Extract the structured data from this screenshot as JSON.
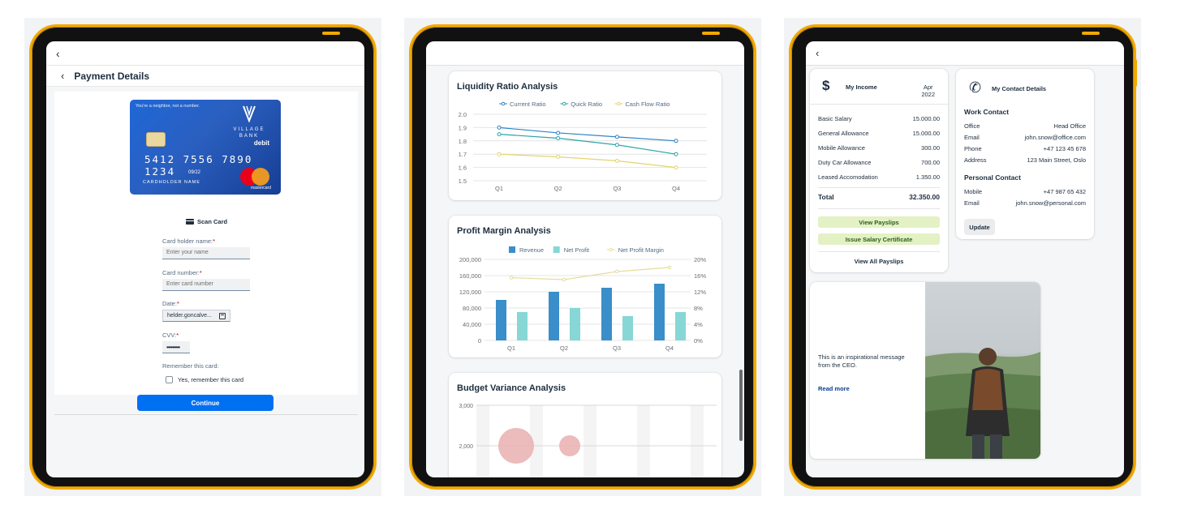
{
  "payment": {
    "title": "Payment Details",
    "card": {
      "slogan": "You're a neighbor, not a number.",
      "bank": "VILLAGE BANK",
      "type": "debit",
      "number": "5412 7556 7890 1234",
      "expiry": "09/22",
      "holder": "CARDHOLDER NAME",
      "network": "mastercard"
    },
    "scan_label": "Scan Card",
    "fields": {
      "holder_label": "Card holder name:",
      "holder_placeholder": "Enter your name",
      "number_label": "Card number:",
      "number_placeholder": "Enter card number",
      "date_label": "Date:",
      "date_value": "helder.goncalve...",
      "cvv_label": "CVV:",
      "cvv_value": "•••••••••",
      "required_mark": "*"
    },
    "remember_label": "Remember this card:",
    "remember_option": "Yes, remember this card",
    "continue_label": "Continue",
    "colors": {
      "primary": "#0070f2"
    }
  },
  "analytics": {
    "liquidity": {
      "title": "Liquidity Ratio Analysis",
      "chart_data": {
        "type": "line",
        "categories": [
          "Q1",
          "Q2",
          "Q3",
          "Q4"
        ],
        "series": [
          {
            "name": "Current Ratio",
            "values": [
              1.9,
              1.86,
              1.83,
              1.8
            ],
            "color": "#2e83c8"
          },
          {
            "name": "Quick Ratio",
            "values": [
              1.85,
              1.82,
              1.77,
              1.7
            ],
            "color": "#2ca4a8"
          },
          {
            "name": "Cash Flow Ratio",
            "values": [
              1.7,
              1.68,
              1.65,
              1.6
            ],
            "color": "#e3d46e"
          }
        ],
        "ylim": [
          1.5,
          2.0
        ],
        "yticks": [
          "2.0",
          "1.9",
          "1.8",
          "1.7",
          "1.6",
          "1.5"
        ]
      }
    },
    "profit": {
      "title": "Profit Margin Analysis",
      "chart_data": {
        "type": "bar",
        "categories": [
          "Q1",
          "Q2",
          "Q3",
          "Q4"
        ],
        "series": [
          {
            "name": "Revenue",
            "values": [
              100000,
              120000,
              130000,
              140000
            ],
            "color": "#3a8ec9"
          },
          {
            "name": "Net Profit",
            "values": [
              70000,
              80000,
              60000,
              70000
            ],
            "color": "#86d7d6"
          },
          {
            "name": "Net Profit Margin",
            "values": [
              15.5,
              15.0,
              17.0,
              18.0
            ],
            "color": "#e6dc9c",
            "axis": "right"
          }
        ],
        "ylim": [
          0,
          200000
        ],
        "y2lim": [
          0,
          20
        ],
        "yticks": [
          "200,000",
          "160,000",
          "120,000",
          "80,000",
          "40,000",
          "0"
        ],
        "y2ticks": [
          "20%",
          "16%",
          "12%",
          "8%",
          "4%",
          "0%"
        ]
      }
    },
    "budget": {
      "title": "Budget Variance Analysis",
      "chart_data": {
        "type": "scatter",
        "yticks": [
          "3,000",
          "2,000"
        ],
        "points": [
          {
            "x": 1,
            "y": 2000,
            "size": 22,
            "color": "#eab4b4"
          },
          {
            "x": 3,
            "y": 2000,
            "size": 13,
            "color": "#eab4b4"
          }
        ]
      }
    }
  },
  "portal": {
    "income": {
      "title": "My Income",
      "month": "Apr",
      "year": "2022",
      "rows": [
        {
          "label": "Basic Salary",
          "value": "15.000.00"
        },
        {
          "label": "General Allowance",
          "value": "15.000.00"
        },
        {
          "label": "Mobile Allowance",
          "value": "300.00"
        },
        {
          "label": "Duty Car Allowance",
          "value": "700.00"
        },
        {
          "label": "Leased Accomodation",
          "value": "1.350.00"
        }
      ],
      "total_label": "Total",
      "total_value": "32.350.00",
      "btn_payslips": "View Payslips",
      "btn_certificate": "Issue Salary Certificate",
      "link_all": "View All Payslips"
    },
    "contact": {
      "title": "My Contact Details",
      "work_title": "Work Contact",
      "work": [
        {
          "label": "Office",
          "value": "Head Office"
        },
        {
          "label": "Email",
          "value": "john.snow@office.com"
        },
        {
          "label": "Phone",
          "value": "+47 123 45 678"
        },
        {
          "label": "Address",
          "value": "123 Main Street, Oslo"
        }
      ],
      "personal_title": "Personal Contact",
      "personal": [
        {
          "label": "Mobile",
          "value": "+47 987 65 432"
        },
        {
          "label": "Email",
          "value": "john.snow@personal.com"
        }
      ],
      "update_label": "Update"
    },
    "ceo": {
      "message": "This is an inspirational message from the CEO.",
      "read_more": "Read more"
    }
  }
}
